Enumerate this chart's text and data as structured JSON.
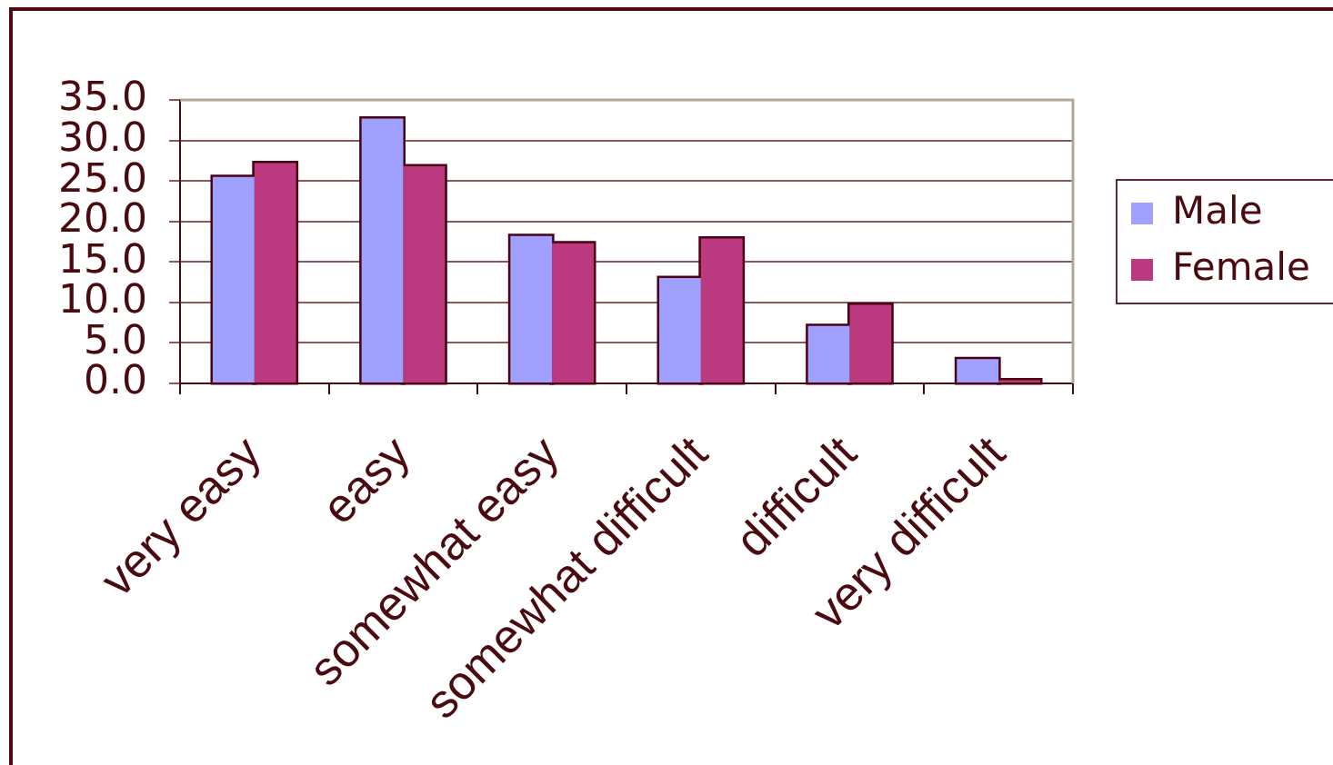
{
  "chart_data": {
    "type": "bar",
    "categories": [
      "very easy",
      "easy",
      "somewhat easy",
      "somewhat difficult",
      "difficult",
      "very difficult"
    ],
    "series": [
      {
        "name": "Male",
        "color": "#a0a0ff",
        "values": [
          25.5,
          32.7,
          18.2,
          13.0,
          7.1,
          3.0
        ]
      },
      {
        "name": "Female",
        "color": "#bb3a7f",
        "values": [
          27.2,
          26.8,
          17.3,
          17.9,
          9.7,
          0.4
        ]
      }
    ],
    "ylim": [
      0,
      35
    ],
    "yticks": [
      {
        "value": 0,
        "label": "0.0"
      },
      {
        "value": 5,
        "label": "5.0"
      },
      {
        "value": 10,
        "label": "10.0"
      },
      {
        "value": 15,
        "label": "15.0"
      },
      {
        "value": 20,
        "label": "20.0"
      },
      {
        "value": 25,
        "label": "25.0"
      },
      {
        "value": 30,
        "label": "30.0"
      },
      {
        "value": 35,
        "label": "35.0"
      }
    ],
    "grid": "y",
    "legend": "right"
  }
}
